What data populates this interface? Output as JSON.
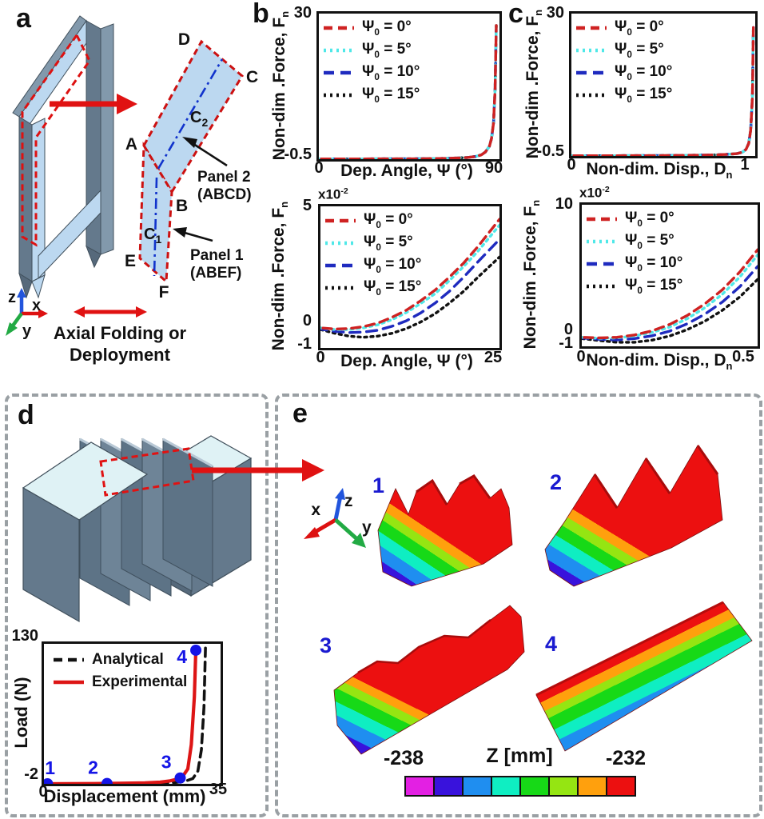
{
  "figure_labels": {
    "a": "a",
    "b": "b",
    "c": "c",
    "d": "d",
    "e": "e"
  },
  "panel_a": {
    "vertices": {
      "A": "A",
      "B": "B",
      "C": "C",
      "D": "D",
      "E": "E",
      "F": "F"
    },
    "crease_c1": {
      "main": "C",
      "sub": "1"
    },
    "crease_c2": {
      "main": "C",
      "sub": "2"
    },
    "panel2_callout": {
      "line1": "Panel 2",
      "line2": "(ABCD)"
    },
    "panel1_callout": {
      "line1": "Panel 1",
      "line2": "(ABEF)"
    },
    "axes": {
      "x": "x",
      "y": "y",
      "z": "z"
    },
    "caption_line1": "Axial Folding or",
    "caption_line2": "Deployment"
  },
  "panel_e": {
    "axes": {
      "x": "x",
      "y": "y",
      "z": "z"
    },
    "surface_labels": [
      "1",
      "2",
      "3",
      "4"
    ],
    "colorbar": {
      "min_label": "-238",
      "title": "Z [mm]",
      "max_label": "-232",
      "colors": [
        "#e320e3",
        "#3912dc",
        "#1f8ef0",
        "#0feec2",
        "#17d917",
        "#95e512",
        "#ffa00d",
        "#ec1010"
      ]
    }
  },
  "chart_data": [
    {
      "id": "b_top",
      "type": "line",
      "xlabel_main": "Dep. Angle, Ψ (°)",
      "xlabel_sub": "",
      "ylabel_main": "Non-dim .Force, F",
      "ylabel_sub": "n",
      "xlim": [
        0,
        90
      ],
      "ylim": [
        -0.5,
        30
      ],
      "xtick_left": "0",
      "xtick_right": "90",
      "ytick_top": "30",
      "ytick_bottom": "-0.5",
      "legend": [
        {
          "sym": "Ψ",
          "sub": "0",
          "rest": " = 0°",
          "color": "#cf2222",
          "dash": "dashed"
        },
        {
          "sym": "Ψ",
          "sub": "0",
          "rest": " = 5°",
          "color": "#4fe8e8",
          "dash": "dotted"
        },
        {
          "sym": "Ψ",
          "sub": "0",
          "rest": " = 10°",
          "color": "#1f2bbf",
          "dash": "dashed-long"
        },
        {
          "sym": "Ψ",
          "sub": "0",
          "rest": " = 15°",
          "color": "#111111",
          "dash": "dotted"
        }
      ],
      "series": [
        {
          "name": "psi0-15",
          "color": "#111111",
          "dash": "dotted",
          "x": [
            0,
            10,
            20,
            30,
            40,
            50,
            55,
            60,
            65,
            70,
            74,
            78,
            81,
            83,
            85,
            86,
            87,
            87.8,
            88.4
          ],
          "y": [
            -0.45,
            -0.45,
            -0.45,
            -0.44,
            -0.43,
            -0.41,
            -0.39,
            -0.36,
            -0.31,
            -0.24,
            -0.15,
            0.05,
            0.4,
            1.0,
            2.2,
            3.8,
            7.0,
            14.0,
            27.5
          ]
        },
        {
          "name": "psi0-10",
          "color": "#1f2bbf",
          "dash": "dashed-long",
          "x": [
            0,
            10,
            20,
            30,
            40,
            50,
            55,
            60,
            65,
            70,
            74,
            78,
            81,
            83,
            85,
            86,
            87,
            87.8,
            88.4
          ],
          "y": [
            -0.45,
            -0.45,
            -0.45,
            -0.44,
            -0.43,
            -0.41,
            -0.39,
            -0.36,
            -0.31,
            -0.24,
            -0.15,
            0.05,
            0.4,
            1.0,
            2.2,
            3.8,
            7.0,
            14.0,
            27.5
          ]
        },
        {
          "name": "psi0-5",
          "color": "#4fe8e8",
          "dash": "dotted",
          "x": [
            0,
            10,
            20,
            30,
            40,
            50,
            55,
            60,
            65,
            70,
            74,
            78,
            81,
            83,
            85,
            86,
            87,
            87.8,
            88.4
          ],
          "y": [
            -0.45,
            -0.45,
            -0.45,
            -0.44,
            -0.43,
            -0.41,
            -0.39,
            -0.36,
            -0.31,
            -0.24,
            -0.15,
            0.05,
            0.4,
            1.0,
            2.2,
            3.8,
            7.0,
            14.0,
            27.5
          ]
        },
        {
          "name": "psi0-0",
          "color": "#cf2222",
          "dash": "dashed",
          "x": [
            0,
            10,
            20,
            30,
            40,
            50,
            55,
            60,
            65,
            70,
            74,
            78,
            81,
            83,
            85,
            86,
            87,
            87.8,
            88.4
          ],
          "y": [
            -0.45,
            -0.45,
            -0.45,
            -0.44,
            -0.43,
            -0.41,
            -0.39,
            -0.36,
            -0.31,
            -0.24,
            -0.15,
            0.05,
            0.4,
            1.0,
            2.2,
            3.8,
            7.0,
            14.0,
            27.5
          ]
        }
      ]
    },
    {
      "id": "b_bottom",
      "type": "line",
      "scale_main": "x10",
      "scale_sup": "-2",
      "xlabel_main": "Dep. Angle, Ψ (°)",
      "xlabel_sub": "",
      "ylabel_main": "Non-dim .Force, F",
      "ylabel_sub": "n",
      "xlim": [
        0,
        25
      ],
      "ylim": [
        -1,
        5
      ],
      "xtick_left": "0",
      "xtick_right": "25",
      "ytick_top": "5",
      "ytick_mid": "0",
      "ytick_bottom": "-1",
      "legend": [
        {
          "sym": "Ψ",
          "sub": "0",
          "rest": " = 0°",
          "color": "#cf2222",
          "dash": "dashed"
        },
        {
          "sym": "Ψ",
          "sub": "0",
          "rest": " = 5°",
          "color": "#4fe8e8",
          "dash": "dotted"
        },
        {
          "sym": "Ψ",
          "sub": "0",
          "rest": " = 10°",
          "color": "#1f2bbf",
          "dash": "dashed-long"
        },
        {
          "sym": "Ψ",
          "sub": "0",
          "rest": " = 15°",
          "color": "#111111",
          "dash": "dotted"
        }
      ],
      "series": [
        {
          "name": "psi0-15",
          "color": "#111111",
          "dash": "dotted",
          "x": [
            0,
            2,
            4,
            6,
            8,
            10,
            12,
            14,
            16,
            18,
            20,
            22,
            25
          ],
          "y": [
            -0.22,
            -0.38,
            -0.5,
            -0.55,
            -0.5,
            -0.38,
            -0.18,
            0.1,
            0.45,
            0.9,
            1.4,
            2.0,
            2.85
          ]
        },
        {
          "name": "psi0-10",
          "color": "#1f2bbf",
          "dash": "dashed-long",
          "x": [
            0,
            2,
            4,
            6,
            8,
            10,
            12,
            14,
            16,
            18,
            20,
            22,
            25
          ],
          "y": [
            -0.2,
            -0.3,
            -0.35,
            -0.33,
            -0.25,
            -0.08,
            0.15,
            0.48,
            0.9,
            1.4,
            2.0,
            2.65,
            3.6
          ]
        },
        {
          "name": "psi0-5",
          "color": "#4fe8e8",
          "dash": "dotted",
          "x": [
            0,
            2,
            4,
            6,
            8,
            10,
            12,
            14,
            16,
            18,
            20,
            22,
            25
          ],
          "y": [
            -0.15,
            -0.22,
            -0.22,
            -0.15,
            -0.02,
            0.2,
            0.5,
            0.88,
            1.3,
            1.85,
            2.45,
            3.1,
            4.2
          ]
        },
        {
          "name": "psi0-0",
          "color": "#cf2222",
          "dash": "dashed",
          "x": [
            0,
            2,
            4,
            6,
            8,
            10,
            12,
            14,
            16,
            18,
            20,
            22,
            25
          ],
          "y": [
            -0.15,
            -0.2,
            -0.18,
            -0.1,
            0.05,
            0.3,
            0.6,
            1.0,
            1.45,
            2.0,
            2.6,
            3.3,
            4.45
          ]
        }
      ]
    },
    {
      "id": "c_top",
      "type": "line",
      "xlabel_main": "Non-dim. Disp., D",
      "xlabel_sub": "n",
      "ylabel_main": "Non-dim .Force, F",
      "ylabel_sub": "n",
      "xlim": [
        0,
        1
      ],
      "ylim": [
        -0.5,
        30
      ],
      "xtick_left": "0",
      "xtick_right": "1",
      "ytick_top": "30",
      "ytick_bottom": "-0.5",
      "legend": [
        {
          "sym": "Ψ",
          "sub": "0",
          "rest": " = 0°",
          "color": "#cf2222",
          "dash": "dashed"
        },
        {
          "sym": "Ψ",
          "sub": "0",
          "rest": " = 5°",
          "color": "#4fe8e8",
          "dash": "dotted"
        },
        {
          "sym": "Ψ",
          "sub": "0",
          "rest": " = 10°",
          "color": "#1f2bbf",
          "dash": "dashed-long"
        },
        {
          "sym": "Ψ",
          "sub": "0",
          "rest": " = 15°",
          "color": "#111111",
          "dash": "dotted"
        }
      ],
      "series": [
        {
          "name": "psi0-15",
          "color": "#111111",
          "dash": "dotted",
          "x": [
            0,
            0.1,
            0.2,
            0.3,
            0.4,
            0.5,
            0.6,
            0.7,
            0.78,
            0.84,
            0.9,
            0.93,
            0.95,
            0.965,
            0.975,
            0.985,
            0.99
          ],
          "y": [
            -0.45,
            -0.45,
            -0.45,
            -0.44,
            -0.43,
            -0.41,
            -0.38,
            -0.33,
            -0.27,
            -0.18,
            0.0,
            0.3,
            0.9,
            2.2,
            5.0,
            12.0,
            27.0
          ]
        },
        {
          "name": "psi0-10",
          "color": "#1f2bbf",
          "dash": "dashed-long",
          "x": [
            0,
            0.1,
            0.2,
            0.3,
            0.4,
            0.5,
            0.6,
            0.7,
            0.78,
            0.84,
            0.9,
            0.93,
            0.95,
            0.965,
            0.975,
            0.985,
            0.99
          ],
          "y": [
            -0.45,
            -0.45,
            -0.45,
            -0.44,
            -0.43,
            -0.41,
            -0.38,
            -0.33,
            -0.27,
            -0.18,
            0.0,
            0.3,
            0.9,
            2.2,
            5.0,
            12.0,
            27.0
          ]
        },
        {
          "name": "psi0-5",
          "color": "#4fe8e8",
          "dash": "dotted",
          "x": [
            0,
            0.1,
            0.2,
            0.3,
            0.4,
            0.5,
            0.6,
            0.7,
            0.78,
            0.84,
            0.9,
            0.93,
            0.95,
            0.965,
            0.975,
            0.985,
            0.99
          ],
          "y": [
            -0.45,
            -0.45,
            -0.45,
            -0.44,
            -0.43,
            -0.41,
            -0.38,
            -0.33,
            -0.27,
            -0.18,
            0.0,
            0.3,
            0.9,
            2.2,
            5.0,
            12.0,
            27.0
          ]
        },
        {
          "name": "psi0-0",
          "color": "#cf2222",
          "dash": "dashed",
          "x": [
            0,
            0.1,
            0.2,
            0.3,
            0.4,
            0.5,
            0.6,
            0.7,
            0.78,
            0.84,
            0.9,
            0.93,
            0.95,
            0.965,
            0.975,
            0.985,
            0.99
          ],
          "y": [
            -0.45,
            -0.45,
            -0.45,
            -0.44,
            -0.43,
            -0.41,
            -0.38,
            -0.33,
            -0.27,
            -0.18,
            0.0,
            0.3,
            0.9,
            2.2,
            5.0,
            12.0,
            27.0
          ]
        }
      ]
    },
    {
      "id": "c_bottom",
      "type": "line",
      "scale_main": "x10",
      "scale_sup": "-2",
      "xlabel_main": "Non-dim. Disp., D",
      "xlabel_sub": "n",
      "ylabel_main": "Non-dim .Force, F",
      "ylabel_sub": "n",
      "xlim": [
        0,
        0.5
      ],
      "ylim": [
        -1,
        10
      ],
      "xtick_left": "0",
      "xtick_right": "0.5",
      "ytick_top": "10",
      "ytick_mid": "0",
      "ytick_bottom": "-1",
      "legend": [
        {
          "sym": "Ψ",
          "sub": "0",
          "rest": " = 0°",
          "color": "#cf2222",
          "dash": "dashed"
        },
        {
          "sym": "Ψ",
          "sub": "0",
          "rest": " = 5°",
          "color": "#4fe8e8",
          "dash": "dotted"
        },
        {
          "sym": "Ψ",
          "sub": "0",
          "rest": " = 10°",
          "color": "#1f2bbf",
          "dash": "dashed-long"
        },
        {
          "sym": "Ψ",
          "sub": "0",
          "rest": " = 15°",
          "color": "#111111",
          "dash": "dotted"
        }
      ],
      "series": [
        {
          "name": "psi0-15",
          "color": "#111111",
          "dash": "dotted",
          "x": [
            0,
            0.05,
            0.1,
            0.15,
            0.2,
            0.25,
            0.3,
            0.35,
            0.4,
            0.45,
            0.5
          ],
          "y": [
            -0.4,
            -0.55,
            -0.68,
            -0.68,
            -0.52,
            -0.2,
            0.3,
            0.95,
            1.8,
            2.85,
            4.2
          ]
        },
        {
          "name": "psi0-10",
          "color": "#1f2bbf",
          "dash": "dashed-long",
          "x": [
            0,
            0.05,
            0.1,
            0.15,
            0.2,
            0.25,
            0.3,
            0.35,
            0.4,
            0.45,
            0.5
          ],
          "y": [
            -0.35,
            -0.45,
            -0.5,
            -0.4,
            -0.18,
            0.18,
            0.75,
            1.5,
            2.45,
            3.65,
            5.2
          ]
        },
        {
          "name": "psi0-5",
          "color": "#4fe8e8",
          "dash": "dotted",
          "x": [
            0,
            0.05,
            0.1,
            0.15,
            0.2,
            0.25,
            0.3,
            0.35,
            0.4,
            0.45,
            0.5
          ],
          "y": [
            -0.3,
            -0.38,
            -0.35,
            -0.2,
            0.08,
            0.5,
            1.15,
            2.0,
            3.05,
            4.4,
            6.1
          ]
        },
        {
          "name": "psi0-0",
          "color": "#cf2222",
          "dash": "dashed",
          "x": [
            0,
            0.05,
            0.1,
            0.15,
            0.2,
            0.25,
            0.3,
            0.35,
            0.4,
            0.45,
            0.5
          ],
          "y": [
            -0.3,
            -0.35,
            -0.3,
            -0.12,
            0.2,
            0.7,
            1.4,
            2.3,
            3.4,
            4.8,
            6.5
          ]
        }
      ]
    },
    {
      "id": "d_load",
      "type": "line",
      "xlabel_main": "Displacement (mm)",
      "xlabel_sub": "",
      "ylabel_main": "Load (N)",
      "ylabel_sub": "",
      "xlim": [
        0,
        35
      ],
      "ylim": [
        -2,
        130
      ],
      "xtick_left": "0",
      "xtick_right": "35",
      "ytick_top": "130",
      "ytick_bottom": "-2",
      "marker_color": "#1414e6",
      "legend": [
        {
          "label": "Analytical",
          "color": "#111111",
          "dash": "dashed"
        },
        {
          "label": "Experimental",
          "color": "#dd1515",
          "dash": "solid"
        }
      ],
      "series": [
        {
          "name": "analytical",
          "color": "#111111",
          "dash": "dashed",
          "width": 3.6,
          "x": [
            0,
            5,
            10,
            15,
            20,
            23,
            26,
            28,
            29.5,
            30.5,
            31.2,
            31.7,
            32
          ],
          "y": [
            -2,
            -1.95,
            -1.9,
            -1.8,
            -1.6,
            -1.3,
            -0.7,
            0.5,
            3,
            10,
            30,
            70,
            126
          ]
        },
        {
          "name": "experimental",
          "color": "#dd1515",
          "dash": "solid",
          "width": 4.2,
          "x": [
            0,
            5,
            10,
            15,
            20,
            23,
            25,
            26.5,
            27.5,
            28.5,
            29.2,
            29.8,
            30.1
          ],
          "y": [
            -2,
            -1.9,
            -1.75,
            -1.5,
            -1.1,
            -0.5,
            0.8,
            2.5,
            5,
            12,
            35,
            80,
            126
          ]
        }
      ],
      "points": [
        {
          "label": "1",
          "x": 0.7,
          "y": -2
        },
        {
          "label": "2",
          "x": 12.5,
          "y": -1.7
        },
        {
          "label": "3",
          "x": 27,
          "y": 3.5
        },
        {
          "label": "4",
          "x": 30.1,
          "y": 124
        }
      ]
    }
  ]
}
